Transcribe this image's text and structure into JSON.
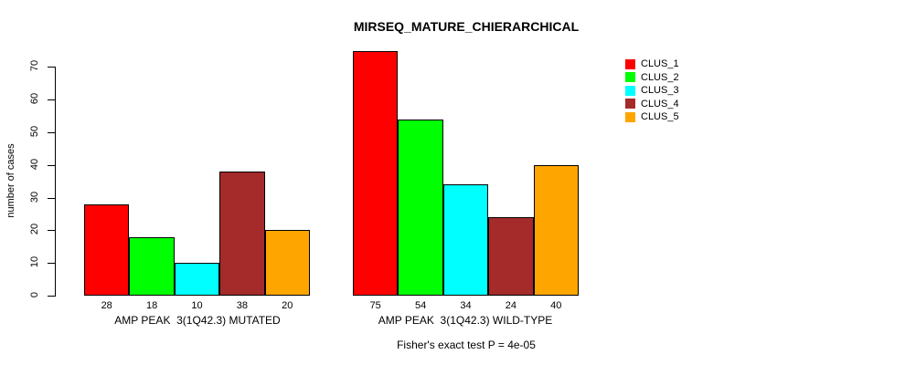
{
  "title": "MIRSEQ_MATURE_CHIERARCHICAL",
  "ylabel": "number of cases",
  "footer": "Fisher's exact test P = 4e-05",
  "chart_data": {
    "type": "bar",
    "title": "MIRSEQ_MATURE_CHIERARCHICAL",
    "xlabel": "",
    "ylabel": "number of cases",
    "ylim": [
      0,
      75
    ],
    "yticks": [
      0,
      10,
      20,
      30,
      40,
      50,
      60,
      70
    ],
    "grid": false,
    "legend_position": "top-right",
    "groups": [
      {
        "label": "AMP PEAK  3(1Q42.3) MUTATED",
        "values": [
          28,
          18,
          10,
          38,
          20
        ]
      },
      {
        "label": "AMP PEAK  3(1Q42.3) WILD-TYPE",
        "values": [
          75,
          54,
          34,
          24,
          40
        ]
      }
    ],
    "series": [
      {
        "name": "CLUS_1",
        "color": "#FF0000"
      },
      {
        "name": "CLUS_2",
        "color": "#00FF00"
      },
      {
        "name": "CLUS_3",
        "color": "#00FFFF"
      },
      {
        "name": "CLUS_4",
        "color": "#A52A2A"
      },
      {
        "name": "CLUS_5",
        "color": "#FFA500"
      }
    ],
    "annotation": "Fisher's exact test P = 4e-05"
  }
}
